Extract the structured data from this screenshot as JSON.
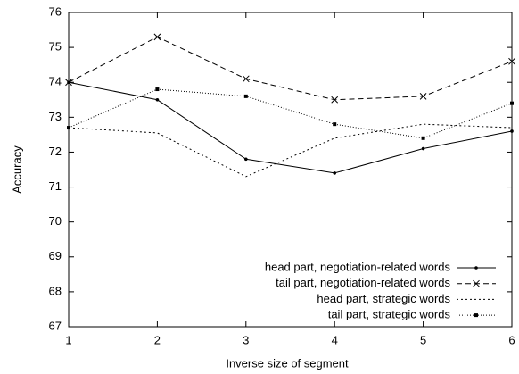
{
  "chart_data": {
    "type": "line",
    "x_label": "Inverse size of segment",
    "y_label": "Accuracy",
    "x": [
      1,
      2,
      3,
      4,
      5,
      6
    ],
    "xlim": [
      1,
      6
    ],
    "xticks": [
      1,
      2,
      3,
      4,
      5,
      6
    ],
    "ylim": [
      67,
      76
    ],
    "yticks": [
      67,
      68,
      69,
      70,
      71,
      72,
      73,
      74,
      75,
      76
    ],
    "grid": false,
    "legend": "lower right",
    "series": [
      {
        "name": "head part, negotiation-related words",
        "color": "#000000",
        "dash": "solid",
        "marker": "dot",
        "values": [
          74.0,
          73.5,
          71.8,
          71.4,
          72.1,
          72.6
        ]
      },
      {
        "name": "tail part, negotiation-related words",
        "color": "#000000",
        "dash": "dashed",
        "marker": "cross",
        "values": [
          74.0,
          75.3,
          74.1,
          73.5,
          73.6,
          74.6
        ]
      },
      {
        "name": "head part, strategic words",
        "color": "#000000",
        "dash": "dotted",
        "marker": "none",
        "values": [
          72.7,
          72.55,
          71.3,
          72.4,
          72.8,
          72.7
        ]
      },
      {
        "name": "tail part, strategic words",
        "color": "#000000",
        "dash": "fine-dotted",
        "marker": "square",
        "values": [
          72.7,
          73.8,
          73.6,
          72.8,
          72.4,
          73.4
        ]
      }
    ]
  }
}
